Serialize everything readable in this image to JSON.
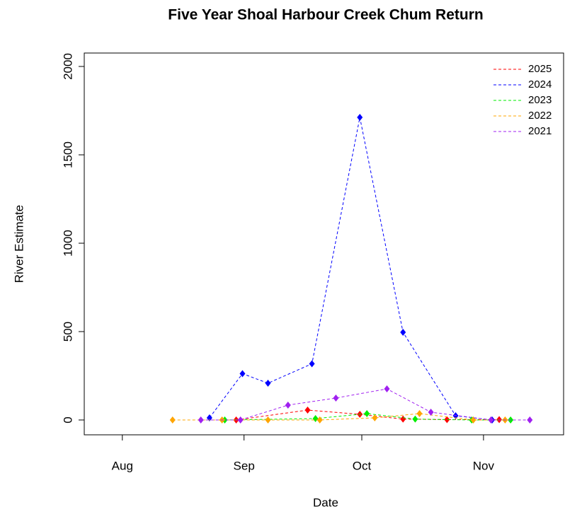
{
  "chart_data": {
    "type": "line",
    "title": "Five Year Shoal Harbour Creek Chum Return",
    "x_label": "Date",
    "y_label": "River Estimate",
    "xlim": [
      -9.7,
      112.4
    ],
    "ylim": [
      -84,
      2076
    ],
    "xticks": [
      {
        "value": 0,
        "label": "Aug"
      },
      {
        "value": 31,
        "label": "Sep"
      },
      {
        "value": 61,
        "label": "Oct"
      },
      {
        "value": 92,
        "label": "Nov"
      }
    ],
    "yticks": [
      0,
      500,
      1000,
      1500,
      2000
    ],
    "legend": "top-right",
    "series": [
      {
        "name": "2025",
        "color": "#ff0000",
        "x": [
          29,
          47.2,
          60.5,
          71.5,
          82.7,
          96
        ],
        "values": [
          0,
          56,
          32,
          5,
          2,
          2
        ]
      },
      {
        "name": "2024",
        "color": "#0000ff",
        "x": [
          22.2,
          30.6,
          37.1,
          48.3,
          60.5,
          71.5,
          84.9,
          94.2
        ],
        "values": [
          12,
          262,
          208,
          318,
          1712,
          496,
          24,
          0
        ]
      },
      {
        "name": "2023",
        "color": "#00ee00",
        "x": [
          26.1,
          49.2,
          62.3,
          74.6,
          89,
          98.9
        ],
        "values": [
          0,
          8,
          36,
          5,
          0,
          0
        ]
      },
      {
        "name": "2022",
        "color": "#ffa500",
        "x": [
          12.8,
          25.4,
          37.1,
          50.3,
          64.3,
          75.7,
          89.4,
          97.5
        ],
        "values": [
          0,
          0,
          0,
          0,
          12,
          36,
          0,
          0
        ]
      },
      {
        "name": "2021",
        "color": "#a020f0",
        "x": [
          20,
          30.1,
          42.2,
          54.4,
          67.4,
          78.6,
          93.9,
          103.8
        ],
        "values": [
          0,
          0,
          84,
          124,
          176,
          44,
          0,
          0
        ]
      }
    ]
  }
}
